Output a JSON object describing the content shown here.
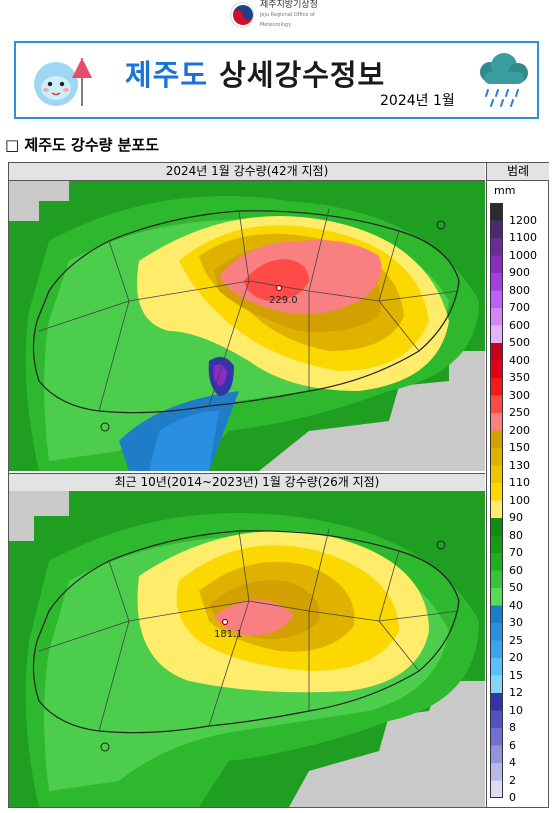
{
  "header": {
    "org_name": "제주지방기상청",
    "org_name_en": "Jeju Regional Office of Meteorology",
    "title_region": "제주도",
    "title_main": "상세강수정보",
    "date": "2024년 1월"
  },
  "section": {
    "title": "□ 제주도 강수량 분포도"
  },
  "maps": [
    {
      "header": "2024년 1월 강수량(42개 지점)",
      "max_label": "229.0"
    },
    {
      "header": "최근 10년(2014~2023년) 1월 강수량(26개 지점)",
      "max_label": "181.1"
    }
  ],
  "legend": {
    "header": "범례",
    "unit": "mm",
    "ticks": [
      "1200",
      "1100",
      "1000",
      "900",
      "800",
      "700",
      "600",
      "500",
      "400",
      "350",
      "300",
      "250",
      "200",
      "150",
      "130",
      "110",
      "100",
      "90",
      "80",
      "70",
      "60",
      "50",
      "40",
      "30",
      "25",
      "20",
      "15",
      "12",
      "10",
      "8",
      "6",
      "4",
      "2",
      "0"
    ],
    "colors": [
      "#2b2b2b",
      "#4b2a6e",
      "#6a2c9a",
      "#8a2cc0",
      "#a53ee0",
      "#bb62f0",
      "#d08af8",
      "#e3b4fb",
      "#c8001a",
      "#e2001a",
      "#f51b1b",
      "#ff4a4a",
      "#f88080",
      "#d2a000",
      "#dfb200",
      "#ecc600",
      "#fad800",
      "#ffec6a",
      "#138a13",
      "#179b17",
      "#1fae1f",
      "#38c438",
      "#58dc58",
      "#1a7fc8",
      "#2a8fe0",
      "#3ba4f0",
      "#5cc0f8",
      "#86d6fc",
      "#3434a8",
      "#5252c0",
      "#7070d0",
      "#9494dc",
      "#b8b8e8",
      "#dcdcf4"
    ]
  },
  "icons": {
    "mascot": "mascot-icon",
    "rain_cloud": "rain-cloud-icon",
    "emblem": "emblem-icon"
  }
}
